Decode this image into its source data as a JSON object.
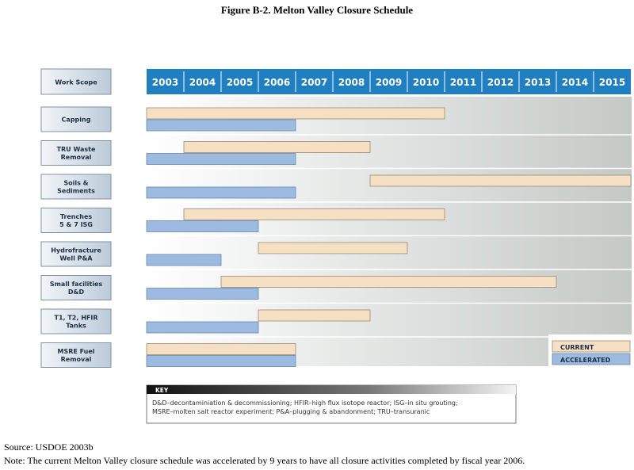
{
  "figure_title": "Figure B-2. Melton Valley Closure Schedule",
  "header_label": "Work Scope",
  "colors": {
    "header": "#1f7fc0",
    "current": "#f5e0c4",
    "accelerated": "#9dbbe0",
    "label_box": "#c5d4e2",
    "chart_bg_start": "#ffffff",
    "chart_bg_end": "#c4c9c6"
  },
  "chart_data": {
    "type": "gantt",
    "years": [
      "2003",
      "2004",
      "2005",
      "2006",
      "2007",
      "2008",
      "2009",
      "2010",
      "2011",
      "2012",
      "2013",
      "2014",
      "2015"
    ],
    "series_names": [
      "CURRENT",
      "ACCELERATED"
    ],
    "tasks": [
      {
        "label": [
          "Capping"
        ],
        "current": [
          2003,
          2011
        ],
        "accelerated": [
          2003,
          2007
        ]
      },
      {
        "label": [
          "TRU Waste",
          "Removal"
        ],
        "current": [
          2004,
          2009
        ],
        "accelerated": [
          2003,
          2007
        ]
      },
      {
        "label": [
          "Soils &",
          "Sediments"
        ],
        "current": [
          2009,
          2016
        ],
        "accelerated": [
          2003,
          2007
        ]
      },
      {
        "label": [
          "Trenches",
          "5 & 7 ISG"
        ],
        "current": [
          2004,
          2011
        ],
        "accelerated": [
          2003,
          2006
        ]
      },
      {
        "label": [
          "Hydrofracture",
          "Well P&A"
        ],
        "current": [
          2006,
          2010
        ],
        "accelerated": [
          2003,
          2005
        ]
      },
      {
        "label": [
          "Small facilities",
          "D&D"
        ],
        "current": [
          2005,
          2014
        ],
        "accelerated": [
          2003,
          2006
        ]
      },
      {
        "label": [
          "T1, T2, HFIR",
          "Tanks"
        ],
        "current": [
          2006,
          2009
        ],
        "accelerated": [
          2003,
          2006
        ]
      },
      {
        "label": [
          "MSRE Fuel",
          "Removal"
        ],
        "current": [
          2003,
          2007
        ],
        "accelerated": [
          2003,
          2007
        ]
      }
    ]
  },
  "legend": {
    "current": "CURRENT",
    "accelerated": "ACCELERATED"
  },
  "key": {
    "title": "KEY",
    "line1": "D&D–decontaminiation & decommissioning; HFIR–high flux isotope reactor; ISG–in situ grouting;",
    "line2": "MSRE–molten salt reactor experiment; P&A–plugging & abandonment; TRU–transuranic"
  },
  "source": "Source: USDOE 2003b",
  "note": "Note: The current Melton Valley closure schedule was accelerated by 9 years to have all closure activities completed by fiscal year 2006."
}
